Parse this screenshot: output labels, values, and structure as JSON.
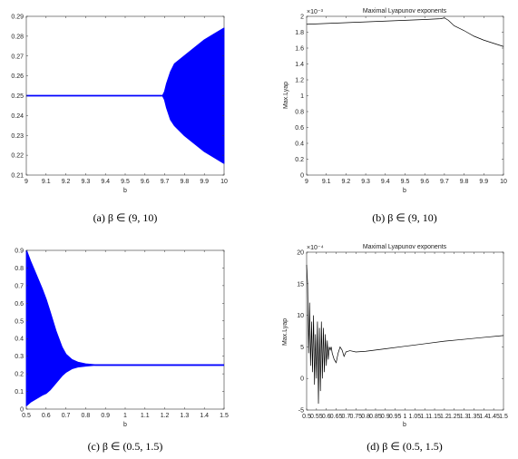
{
  "chart_data": [
    {
      "id": "a",
      "type": "area",
      "caption": "(a) β ∈ (9, 10)",
      "xlabel": "b",
      "ylabel": "",
      "title": "",
      "xlim": [
        9,
        10
      ],
      "ylim": [
        0.21,
        0.29
      ],
      "xticks": [
        "9",
        "9.1",
        "9.2",
        "9.3",
        "9.4",
        "9.5",
        "9.6",
        "9.7",
        "9.8",
        "9.9",
        "10"
      ],
      "yticks": [
        "0.21",
        "0.22",
        "0.23",
        "0.24",
        "0.25",
        "0.26",
        "0.27",
        "0.28",
        "0.29"
      ],
      "color": "#0000ff",
      "series": [
        {
          "x": [
            9,
            9.69,
            9.7,
            9.71,
            9.73,
            9.75,
            9.8,
            9.85,
            9.9,
            9.95,
            10
          ],
          "lower": [
            0.25,
            0.25,
            0.248,
            0.244,
            0.238,
            0.235,
            0.23,
            0.226,
            0.222,
            0.219,
            0.216
          ],
          "upper": [
            0.25,
            0.25,
            0.252,
            0.256,
            0.262,
            0.266,
            0.27,
            0.274,
            0.278,
            0.281,
            0.284
          ]
        }
      ]
    },
    {
      "id": "b",
      "type": "line",
      "caption": "(b) β ∈ (9, 10)",
      "title": "Maximal Lyapunov exponents",
      "xlabel": "b",
      "ylabel": "Max.Lyap",
      "exponent": "×10⁻³",
      "xlim": [
        9,
        10
      ],
      "ylim": [
        0,
        2
      ],
      "xticks": [
        "9",
        "9.1",
        "9.2",
        "9.3",
        "9.4",
        "9.5",
        "9.6",
        "9.7",
        "9.8",
        "9.9",
        "10"
      ],
      "yticks": [
        "0",
        "0.2",
        "0.4",
        "0.6",
        "0.8",
        "1",
        "1.2",
        "1.4",
        "1.6",
        "1.8",
        "2"
      ],
      "color": "#000000",
      "series": [
        {
          "x": [
            9,
            9.1,
            9.2,
            9.3,
            9.4,
            9.5,
            9.6,
            9.68,
            9.7,
            9.72,
            9.75,
            9.8,
            9.85,
            9.9,
            9.95,
            10
          ],
          "y": [
            1.9,
            1.91,
            1.92,
            1.93,
            1.94,
            1.95,
            1.96,
            1.97,
            1.98,
            1.95,
            1.88,
            1.82,
            1.75,
            1.7,
            1.66,
            1.62
          ]
        }
      ]
    },
    {
      "id": "c",
      "type": "area",
      "caption": "(c) β ∈ (0.5, 1.5)",
      "xlabel": "b",
      "ylabel": "",
      "title": "",
      "xlim": [
        0.5,
        1.5
      ],
      "ylim": [
        0,
        0.9
      ],
      "xticks": [
        "0.5",
        "0.6",
        "0.7",
        "0.8",
        "0.9",
        "1",
        "1.1",
        "1.2",
        "1.3",
        "1.4",
        "1.5"
      ],
      "yticks": [
        "0",
        "0.1",
        "0.2",
        "0.3",
        "0.4",
        "0.5",
        "0.6",
        "0.7",
        "0.8",
        "0.9"
      ],
      "color": "#0000ff",
      "series": [
        {
          "x": [
            0.5,
            0.52,
            0.55,
            0.58,
            0.6,
            0.62,
            0.65,
            0.68,
            0.7,
            0.73,
            0.76,
            0.8,
            0.85,
            1.5
          ],
          "lower": [
            0.02,
            0.04,
            0.06,
            0.08,
            0.09,
            0.11,
            0.15,
            0.19,
            0.21,
            0.23,
            0.24,
            0.245,
            0.25,
            0.25
          ],
          "upper": [
            0.9,
            0.84,
            0.76,
            0.68,
            0.62,
            0.55,
            0.44,
            0.35,
            0.31,
            0.28,
            0.265,
            0.255,
            0.25,
            0.25
          ]
        }
      ]
    },
    {
      "id": "d",
      "type": "line",
      "caption": "(d) β ∈ (0.5, 1.5)",
      "title": "Maximal Lyapunov exponents",
      "xlabel": "b",
      "ylabel": "Max.Lyap",
      "exponent": "×10⁻⁴",
      "xlim": [
        0.5,
        1.5
      ],
      "ylim": [
        -5,
        20
      ],
      "xticks": [
        "0.5",
        "0.55",
        "0.6",
        "0.65",
        "0.7",
        "0.75",
        "0.8",
        "0.85",
        "0.9",
        "0.95",
        "1",
        "1.05",
        "1.1",
        "1.15",
        "1.2",
        "1.25",
        "1.3",
        "1.35",
        "1.4",
        "1.45",
        "1.5"
      ],
      "yticks": [
        "-5",
        "0",
        "5",
        "10",
        "15",
        "20"
      ],
      "color": "#000000",
      "series": [
        {
          "x": [
            0.5,
            0.505,
            0.51,
            0.515,
            0.52,
            0.525,
            0.53,
            0.535,
            0.54,
            0.545,
            0.55,
            0.555,
            0.56,
            0.565,
            0.57,
            0.575,
            0.58,
            0.585,
            0.59,
            0.595,
            0.6,
            0.605,
            0.61,
            0.615,
            0.62,
            0.625,
            0.63,
            0.64,
            0.65,
            0.66,
            0.67,
            0.68,
            0.69,
            0.7,
            0.72,
            0.75,
            0.8,
            0.9,
            1,
            1.1,
            1.2,
            1.3,
            1.4,
            1.5
          ],
          "y": [
            18,
            15,
            4,
            12,
            2,
            9,
            1,
            10,
            -1,
            7,
            0,
            9,
            -4,
            8,
            -2,
            9,
            0,
            8,
            1,
            7,
            2,
            6,
            3,
            5,
            4.5,
            5,
            4,
            3,
            2.5,
            4,
            5,
            4.5,
            3.5,
            4.2,
            4.4,
            4.2,
            4.3,
            4.7,
            5.1,
            5.5,
            5.9,
            6.2,
            6.5,
            6.8
          ]
        }
      ]
    }
  ]
}
